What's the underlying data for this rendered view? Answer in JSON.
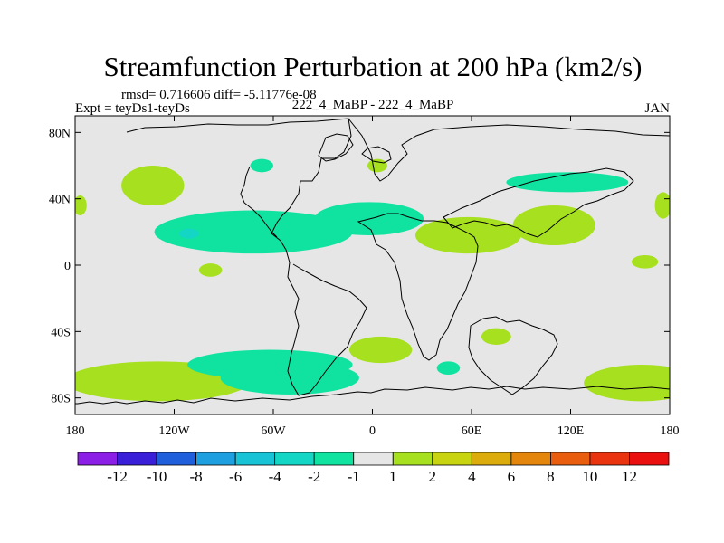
{
  "chart_data": {
    "type": "heatmap",
    "title": "Streamfunction Perturbation at 200 hPa (km2/s)",
    "stats_line": "rmsd= 0.716606 diff= -5.11776e-08",
    "experiment": "Expt = teyDs1-teyDs",
    "comparison": "222_4_MaBP - 222_4_MaBP",
    "month": "JAN",
    "xlim": [
      -180,
      180
    ],
    "ylim": [
      -90,
      90
    ],
    "x_ticks": [
      {
        "value": -180,
        "label": "180"
      },
      {
        "value": -120,
        "label": "120W"
      },
      {
        "value": -60,
        "label": "60W"
      },
      {
        "value": 0,
        "label": "0"
      },
      {
        "value": 60,
        "label": "60E"
      },
      {
        "value": 120,
        "label": "120E"
      },
      {
        "value": 180,
        "label": "180"
      }
    ],
    "y_ticks": [
      {
        "value": 80,
        "label": "80N"
      },
      {
        "value": 40,
        "label": "40N"
      },
      {
        "value": 0,
        "label": "0"
      },
      {
        "value": -40,
        "label": "40S"
      },
      {
        "value": -80,
        "label": "80S"
      }
    ],
    "colorbar": {
      "colors": [
        "#8c1fe6",
        "#3a1fd9",
        "#1f5fdc",
        "#1e9fe0",
        "#18c3d6",
        "#14d6c4",
        "#10e3a0",
        "#e6e6e6",
        "#a6e01e",
        "#c8d410",
        "#dcac0c",
        "#e4860c",
        "#e85e0e",
        "#ea3410",
        "#ea1010"
      ],
      "labels": [
        "-12",
        "-10",
        "-8",
        "-6",
        "-4",
        "-2",
        "-1",
        "1",
        "2",
        "4",
        "6",
        "8",
        "10",
        "12"
      ]
    },
    "background_level_color": "#e6e6e6",
    "regions": [
      {
        "level": "1 to 2",
        "color": "#a6e01e",
        "lon": -133,
        "lat": 48,
        "rlon": 19,
        "rlat": 12
      },
      {
        "level": "1 to 2",
        "color": "#a6e01e",
        "lon": -177,
        "lat": 36,
        "rlon": 4,
        "rlat": 6
      },
      {
        "level": "1 to 2",
        "color": "#a6e01e",
        "lon": 176,
        "lat": 36,
        "rlon": 5,
        "rlat": 8
      },
      {
        "level": "1 to 2",
        "color": "#a6e01e",
        "lon": 3,
        "lat": 60,
        "rlon": 6,
        "rlat": 4
      },
      {
        "level": "1 to 2",
        "color": "#a6e01e",
        "lon": 58,
        "lat": 18,
        "rlon": 32,
        "rlat": 11
      },
      {
        "level": "1 to 2",
        "color": "#a6e01e",
        "lon": 110,
        "lat": 24,
        "rlon": 25,
        "rlat": 12
      },
      {
        "level": "1 to 2",
        "color": "#a6e01e",
        "lon": 165,
        "lat": 2,
        "rlon": 8,
        "rlat": 4
      },
      {
        "level": "1 to 2",
        "color": "#a6e01e",
        "lon": -98,
        "lat": -3,
        "rlon": 7,
        "rlat": 4
      },
      {
        "level": "1 to 2",
        "color": "#a6e01e",
        "lon": 5,
        "lat": -51,
        "rlon": 19,
        "rlat": 8
      },
      {
        "level": "1 to 2",
        "color": "#a6e01e",
        "lon": 75,
        "lat": -43,
        "rlon": 9,
        "rlat": 5
      },
      {
        "level": "1 to 2",
        "color": "#a6e01e",
        "lon": -130,
        "lat": -70,
        "rlon": 56,
        "rlat": 12
      },
      {
        "level": "1 to 2",
        "color": "#a6e01e",
        "lon": 163,
        "lat": -71,
        "rlon": 35,
        "rlat": 11
      },
      {
        "level": "-2 to -1",
        "color": "#10e3a0",
        "lon": -67,
        "lat": 60,
        "rlon": 7,
        "rlat": 4
      },
      {
        "level": "-2 to -1",
        "color": "#10e3a0",
        "lon": -2,
        "lat": 28,
        "rlon": 33,
        "rlat": 10
      },
      {
        "level": "-2 to -1",
        "color": "#10e3a0",
        "lon": -72,
        "lat": 20,
        "rlon": 60,
        "rlat": 13
      },
      {
        "level": "-2 to -1",
        "color": "#10e3a0",
        "lon": 118,
        "lat": 50,
        "rlon": 37,
        "rlat": 6
      },
      {
        "level": "-2 to -1",
        "color": "#10e3a0",
        "lon": -62,
        "lat": -60,
        "rlon": 50,
        "rlat": 9
      },
      {
        "level": "-2 to -1",
        "color": "#10e3a0",
        "lon": -50,
        "lat": -68,
        "rlon": 42,
        "rlat": 10
      },
      {
        "level": "-2 to -1",
        "color": "#10e3a0",
        "lon": 46,
        "lat": -62,
        "rlon": 7,
        "rlat": 4
      },
      {
        "level": "-4 to -2",
        "color": "#14d6c4",
        "lon": -111,
        "lat": 19,
        "rlon": 6,
        "rlat": 3
      }
    ]
  }
}
